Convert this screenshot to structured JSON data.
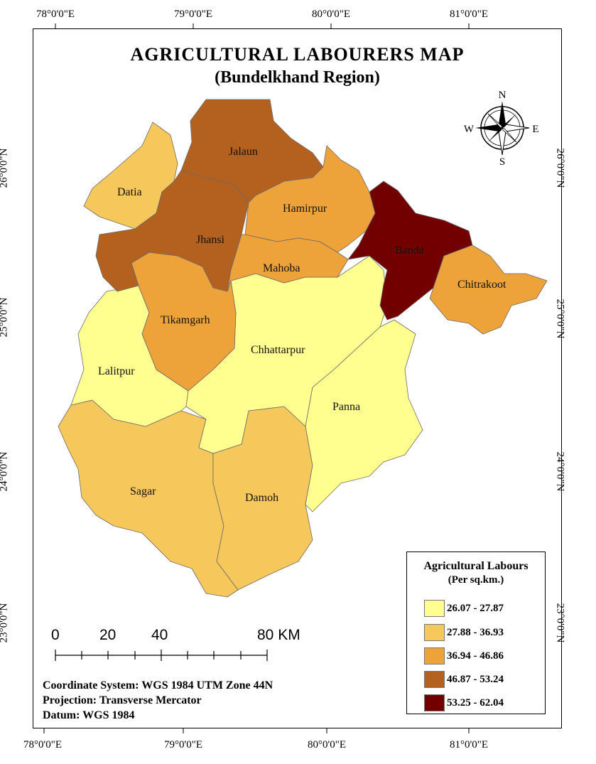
{
  "title": "AGRICULTURAL  LABOURERS MAP",
  "subtitle": "(Bundelkhand Region)",
  "longitudes": [
    "78°0'0\"E",
    "79°0'0\"E",
    "80°0'0\"E",
    "81°0'0\"E"
  ],
  "latitudes": [
    "26°0'0\"N",
    "25°0'0\"N",
    "24°0'0\"N",
    "23°0'0\"N"
  ],
  "compass": {
    "n": "N",
    "s": "S",
    "e": "E",
    "w": "W"
  },
  "districts": [
    {
      "name": "Jalaun",
      "class": 3
    },
    {
      "name": "Datia",
      "class": 1
    },
    {
      "name": "Jhansi",
      "class": 3
    },
    {
      "name": "Hamirpur",
      "class": 2
    },
    {
      "name": "Mahoba",
      "class": 2
    },
    {
      "name": "Banda",
      "class": 4
    },
    {
      "name": "Chitrakoot",
      "class": 2
    },
    {
      "name": "Tikamgarh",
      "class": 2
    },
    {
      "name": "Chhattarpur",
      "class": 0
    },
    {
      "name": "Lalitpur",
      "class": 0
    },
    {
      "name": "Panna",
      "class": 0
    },
    {
      "name": "Sagar",
      "class": 1
    },
    {
      "name": "Damoh",
      "class": 1
    }
  ],
  "legend": {
    "title": "Agricultural Labours",
    "subtitle": "(Per sq.km.)",
    "classes": [
      {
        "label": "26.07 - 27.87",
        "color": "#FFFF8F"
      },
      {
        "label": "27.88 - 36.93",
        "color": "#F6C75A"
      },
      {
        "label": "36.94 - 46.86",
        "color": "#EDA33A"
      },
      {
        "label": "46.87 - 53.24",
        "color": "#B4601E"
      },
      {
        "label": "53.25 - 62.04",
        "color": "#730000"
      }
    ]
  },
  "scale": {
    "labels": [
      "0",
      "20",
      "40",
      "80 KM"
    ]
  },
  "info": {
    "coordinate_system": "Coordinate System: WGS 1984 UTM Zone 44N",
    "projection": "Projection: Transverse Mercator",
    "datum": "Datum: WGS 1984"
  }
}
